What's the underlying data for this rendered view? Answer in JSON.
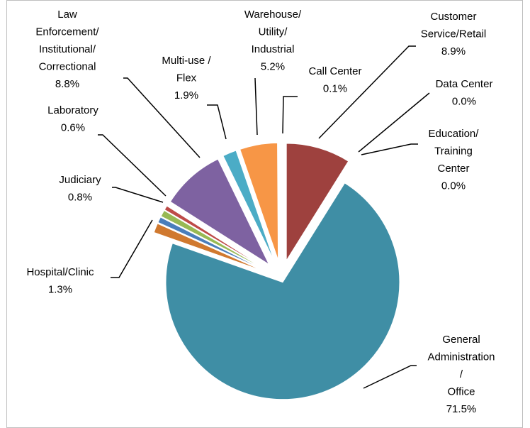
{
  "chart_data": {
    "type": "pie",
    "categories": [
      "Customer\nService/Retail",
      "Data Center",
      "Education/\nTraining\nCenter",
      "General\nAdministration\n/\nOffice",
      "Hospital/Clinic",
      "Judiciary",
      null,
      "Laboratory",
      "Law\nEnforcement/\nInstitutional/\nCorrectional",
      "Multi-use /\nFlex",
      "Warehouse/\nUtility/\nIndustrial",
      "Call Center"
    ],
    "values": [
      8.9,
      0.0,
      0.0,
      71.5,
      1.3,
      0.8,
      0.9,
      0.6,
      8.8,
      1.9,
      5.2,
      0.1
    ],
    "value_labels": [
      "8.9%",
      "0.0%",
      "0.0%",
      "71.5%",
      "1.3%",
      "0.8%",
      null,
      "0.6%",
      "8.8%",
      "1.9%",
      "5.2%",
      "0.1%"
    ],
    "colors": [
      "#9e413e",
      "#c0504d",
      "#4f81bd",
      "#3f8ea5",
      "#d0792f",
      "#4a7ebb",
      "#98b954",
      "#be4b48",
      "#7e62a1",
      "#4bacc6",
      "#f79646",
      "#a7c4e2"
    ]
  }
}
